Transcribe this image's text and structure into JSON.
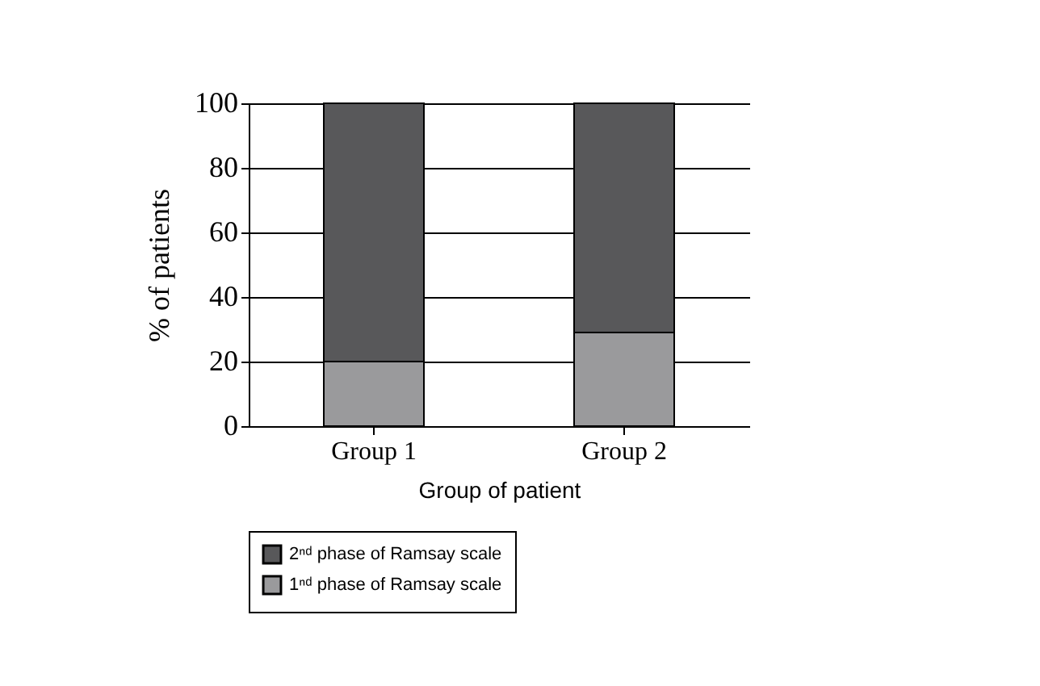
{
  "chart_data": {
    "type": "bar",
    "stacked": true,
    "xlabel": "Group of patient",
    "ylabel": "% of patients",
    "categories": [
      "Group 1",
      "Group 2"
    ],
    "series": [
      {
        "name": "1ⁿᵈ phase of Ramsay scale",
        "color": "#9a9a9c",
        "values": [
          20,
          29
        ]
      },
      {
        "name": "2ⁿᵈ phase of Ramsay scale",
        "color": "#58585a",
        "values": [
          80,
          71
        ]
      }
    ],
    "ylim": [
      0,
      100
    ],
    "yticks": [
      0,
      20,
      40,
      60,
      80,
      100
    ],
    "grid": "y",
    "legend": "bottom"
  }
}
